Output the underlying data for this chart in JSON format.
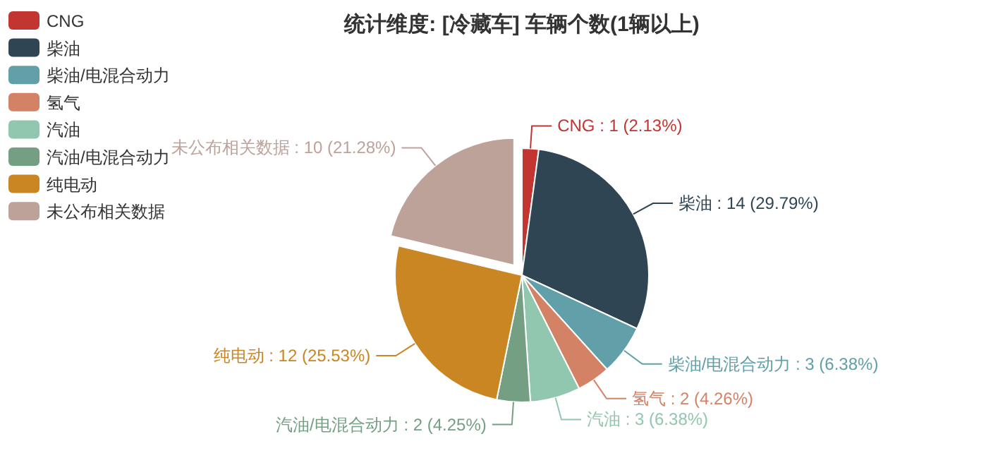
{
  "chart_data": {
    "type": "pie",
    "title": "统计维度: [冷藏车] 车辆个数(1辆以上)",
    "legend": "top left",
    "categories": [
      "CNG",
      "柴油",
      "柴油/电混合动力",
      "氢气",
      "汽油",
      "汽油/电混合动力",
      "纯电动",
      "未公布相关数据"
    ],
    "values": [
      1,
      14,
      3,
      2,
      3,
      2,
      12,
      10
    ],
    "colors": [
      "#c23531",
      "#2f4554",
      "#61a0a8",
      "#d48265",
      "#91c7ae",
      "#749f83",
      "#ca8622",
      "#bda29a"
    ],
    "value_labels": [
      "CNG : 1 (2.13%)",
      "柴油 : 14 (29.79%)",
      "柴油/电混合动力 : 3 (6.38%)",
      "氢气 : 2 (4.26%)",
      "汽油 : 3 (6.38%)",
      "汽油/电混合动力 : 2 (4.25%)",
      "纯电动 : 12 (25.53%)",
      "未公布相关数据 : 10 (21.28%)"
    ]
  }
}
